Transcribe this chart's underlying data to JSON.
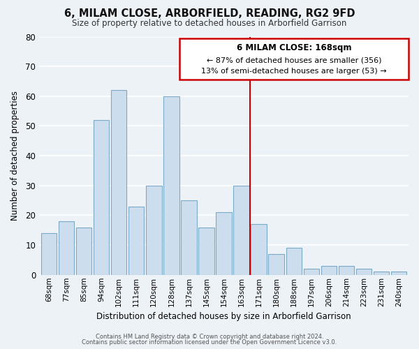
{
  "title": "6, MILAM CLOSE, ARBORFIELD, READING, RG2 9FD",
  "subtitle": "Size of property relative to detached houses in Arborfield Garrison",
  "xlabel": "Distribution of detached houses by size in Arborfield Garrison",
  "ylabel": "Number of detached properties",
  "bar_labels": [
    "68sqm",
    "77sqm",
    "85sqm",
    "94sqm",
    "102sqm",
    "111sqm",
    "120sqm",
    "128sqm",
    "137sqm",
    "145sqm",
    "154sqm",
    "163sqm",
    "171sqm",
    "180sqm",
    "188sqm",
    "197sqm",
    "206sqm",
    "214sqm",
    "223sqm",
    "231sqm",
    "240sqm"
  ],
  "bar_values": [
    14,
    18,
    16,
    52,
    62,
    23,
    30,
    60,
    25,
    16,
    21,
    30,
    17,
    7,
    9,
    2,
    3,
    3,
    2,
    1,
    1
  ],
  "bar_color": "#ccdded",
  "bar_edge_color": "#7aaac8",
  "red_line_after_index": 11,
  "annotation_title": "6 MILAM CLOSE: 168sqm",
  "annotation_line1": "← 87% of detached houses are smaller (356)",
  "annotation_line2": "13% of semi-detached houses are larger (53) →",
  "annotation_box_color": "#ffffff",
  "annotation_box_edge_color": "#cc0000",
  "ylim": [
    0,
    80
  ],
  "yticks": [
    0,
    10,
    20,
    30,
    40,
    50,
    60,
    70,
    80
  ],
  "footer_line1": "Contains HM Land Registry data © Crown copyright and database right 2024.",
  "footer_line2": "Contains public sector information licensed under the Open Government Licence v3.0.",
  "bg_color": "#edf2f7",
  "grid_color": "#ffffff"
}
